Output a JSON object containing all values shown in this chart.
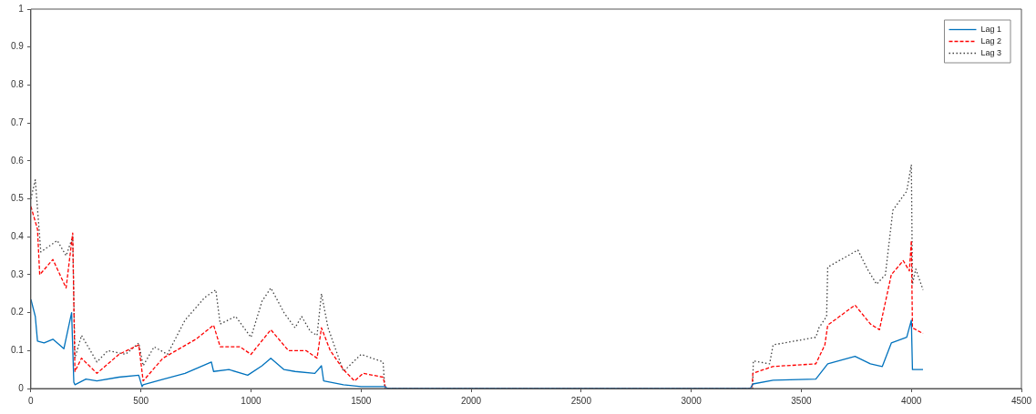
{
  "chart_data": {
    "type": "line",
    "xlim": [
      0,
      4500
    ],
    "xticks": [
      0,
      500,
      1000,
      1500,
      2000,
      2500,
      3000,
      3500,
      4000,
      4500
    ],
    "ylim": [
      0,
      1
    ],
    "yticks": [
      0,
      0.1,
      0.2,
      0.3,
      0.4,
      0.5,
      0.6,
      0.7,
      0.8,
      0.9,
      1
    ],
    "grid": false,
    "legend": "top right",
    "marker": "none",
    "series": [
      {
        "name": "Lag 1",
        "color": "#0072bd",
        "line_style": "solid",
        "x": [
          0,
          20,
          30,
          60,
          100,
          150,
          185,
          195,
          200,
          250,
          300,
          400,
          490,
          505,
          510,
          600,
          700,
          820,
          830,
          900,
          985,
          1050,
          1090,
          1150,
          1200,
          1290,
          1320,
          1330,
          1420,
          1500,
          1610,
          1620,
          3268,
          3280,
          3372,
          3566,
          3620,
          3744,
          3814,
          3868,
          3909,
          3979,
          4000,
          4005,
          4053
        ],
        "values": [
          0.235,
          0.19,
          0.125,
          0.12,
          0.13,
          0.105,
          0.2,
          0.017,
          0.01,
          0.025,
          0.02,
          0.03,
          0.035,
          0.005,
          0.01,
          0.024,
          0.04,
          0.07,
          0.045,
          0.05,
          0.035,
          0.06,
          0.08,
          0.05,
          0.045,
          0.04,
          0.06,
          0.02,
          0.01,
          0.005,
          0.005,
          0,
          0,
          0.012,
          0.022,
          0.025,
          0.065,
          0.085,
          0.065,
          0.058,
          0.12,
          0.135,
          0.18,
          0.05,
          0.05
        ]
      },
      {
        "name": "Lag 2",
        "color": "#ff0000",
        "line_style": "dashed",
        "x": [
          0,
          30,
          40,
          100,
          160,
          190,
          200,
          230,
          300,
          400,
          490,
          510,
          600,
          750,
          830,
          860,
          950,
          1000,
          1090,
          1170,
          1250,
          1300,
          1320,
          1360,
          1420,
          1470,
          1510,
          1600,
          1612,
          3276,
          3280,
          3370,
          3566,
          3607,
          3620,
          3744,
          3814,
          3855,
          3909,
          3963,
          3991,
          4000,
          4005,
          4053
        ],
        "values": [
          0.48,
          0.42,
          0.3,
          0.34,
          0.265,
          0.41,
          0.045,
          0.08,
          0.04,
          0.09,
          0.115,
          0.02,
          0.08,
          0.13,
          0.167,
          0.11,
          0.11,
          0.09,
          0.155,
          0.1,
          0.1,
          0.08,
          0.16,
          0.1,
          0.05,
          0.02,
          0.04,
          0.03,
          0,
          0,
          0.04,
          0.058,
          0.065,
          0.115,
          0.167,
          0.22,
          0.17,
          0.155,
          0.3,
          0.337,
          0.31,
          0.39,
          0.16,
          0.145
        ]
      },
      {
        "name": "Lag 3",
        "color": "#404040",
        "line_style": "dotted",
        "x": [
          0,
          20,
          45,
          120,
          160,
          190,
          200,
          230,
          300,
          350,
          430,
          490,
          510,
          560,
          620,
          700,
          790,
          840,
          860,
          930,
          1000,
          1050,
          1090,
          1150,
          1200,
          1230,
          1270,
          1300,
          1320,
          1350,
          1420,
          1500,
          1600,
          1608,
          3279,
          3282,
          3356,
          3372,
          3566,
          3580,
          3615,
          3620,
          3757,
          3800,
          3842,
          3882,
          3916,
          3979,
          4000,
          4005,
          4020,
          4053
        ],
        "values": [
          0.5,
          0.55,
          0.36,
          0.39,
          0.35,
          0.4,
          0.08,
          0.14,
          0.07,
          0.1,
          0.09,
          0.12,
          0.06,
          0.11,
          0.09,
          0.18,
          0.24,
          0.26,
          0.17,
          0.19,
          0.135,
          0.23,
          0.265,
          0.2,
          0.16,
          0.19,
          0.15,
          0.14,
          0.25,
          0.16,
          0.045,
          0.09,
          0.07,
          0,
          0,
          0.073,
          0.065,
          0.115,
          0.135,
          0.16,
          0.19,
          0.32,
          0.365,
          0.315,
          0.275,
          0.3,
          0.47,
          0.52,
          0.59,
          0.275,
          0.315,
          0.26
        ]
      }
    ]
  }
}
